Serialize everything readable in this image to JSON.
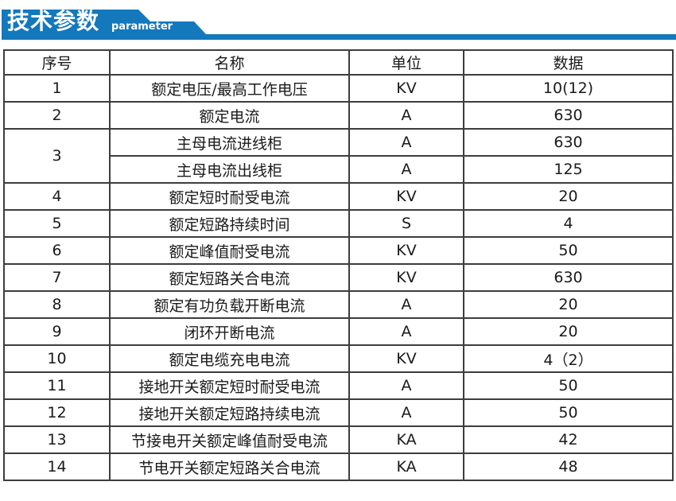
{
  "banner": {
    "title": "技术参数",
    "subtitle": "parameter",
    "color": "#1478bd"
  },
  "table": {
    "headers": [
      "序号",
      "名称",
      "单位",
      "数据"
    ],
    "rows": [
      {
        "no": "1",
        "name": "额定电压/最高工作电压",
        "unit": "KV",
        "value": "10(12)"
      },
      {
        "no": "2",
        "name": "额定电流",
        "unit": "A",
        "value": "630"
      },
      {
        "no": "3",
        "no_rowspan": 2,
        "name": "主母电流进线柜",
        "unit": "A",
        "value": "630"
      },
      {
        "no": null,
        "name": "主母电流出线柜",
        "unit": "A",
        "value": "125"
      },
      {
        "no": "4",
        "name": "额定短时耐受电流",
        "unit": "KV",
        "value": "20"
      },
      {
        "no": "5",
        "name": "额定短路持续时间",
        "unit": "S",
        "value": "4"
      },
      {
        "no": "6",
        "name": "额定峰值耐受电流",
        "unit": "KV",
        "value": "50"
      },
      {
        "no": "7",
        "name": "额定短路关合电流",
        "unit": "KV",
        "value": "630"
      },
      {
        "no": "8",
        "name": "额定有功负载开断电流",
        "unit": "A",
        "value": "20"
      },
      {
        "no": "9",
        "name": "闭环开断电流",
        "unit": "A",
        "value": "20"
      },
      {
        "no": "10",
        "name": "额定电缆充电电流",
        "unit": "KV",
        "value": "4（2）"
      },
      {
        "no": "11",
        "name": "接地开关额定短时耐受电流",
        "unit": "A",
        "value": "50"
      },
      {
        "no": "12",
        "name": "接地开关额定短路持续电流",
        "unit": "A",
        "value": "50"
      },
      {
        "no": "13",
        "name": "节接电开关额定峰值耐受电流",
        "unit": "KA",
        "value": "42"
      },
      {
        "no": "14",
        "name": "节电开关额定短路关合电流",
        "unit": "KA",
        "value": "48"
      }
    ]
  }
}
